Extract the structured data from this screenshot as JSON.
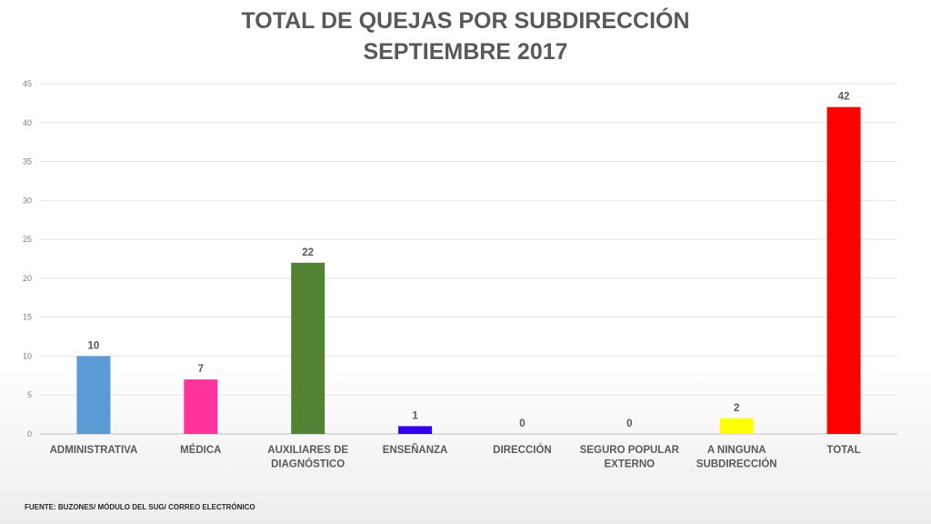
{
  "title_line1": "TOTAL DE QUEJAS POR SUBDIRECCIÓN",
  "title_line2": "SEPTIEMBRE 2017",
  "source": "FUENTE: BUZONES/ MÓDULO DEL SUG/ CORREO ELECTRÓNICO",
  "chart_data": {
    "type": "bar",
    "title": "TOTAL DE QUEJAS POR SUBDIRECCIÓN SEPTIEMBRE 2017",
    "categories": [
      [
        "ADMINISTRATIVA"
      ],
      [
        "MÉDICA"
      ],
      [
        "AUXILIARES DE",
        "DIAGNÓSTICO"
      ],
      [
        "ENSEÑANZA"
      ],
      [
        "DIRECCIÓN"
      ],
      [
        "SEGURO POPULAR",
        "EXTERNO"
      ],
      [
        "A NINGUNA",
        "SUBDIRECCIÓN"
      ],
      [
        "TOTAL"
      ]
    ],
    "values": [
      10,
      7,
      22,
      1,
      0,
      0,
      2,
      42
    ],
    "colors": [
      "#5b9bd5",
      "#ff3399",
      "#548235",
      "#3300ee",
      "#a5a5a5",
      "#a5a5a5",
      "#ffff00",
      "#ff0000"
    ],
    "ylim": [
      0,
      45
    ],
    "yticks": [
      0,
      5,
      10,
      15,
      20,
      25,
      30,
      35,
      40,
      45
    ],
    "grid": true,
    "legend": "none"
  }
}
